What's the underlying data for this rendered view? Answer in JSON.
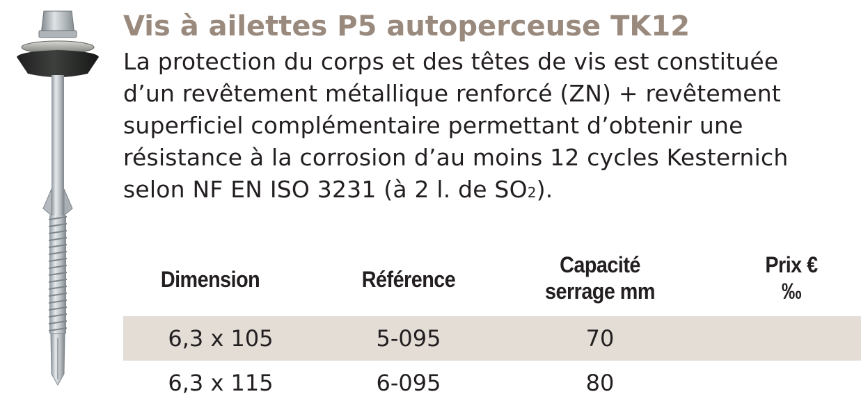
{
  "product": {
    "title": "Vis à ailettes P5 autoperceuse TK12",
    "description_lines": [
      "La protection du corps et des têtes de vis est constituée",
      "d’un revêtement métallique renforcé (ZN) + revêtement",
      "superficiel complémentaire permettant d’obtenir une",
      "résistance à la corrosion d’au moins 12 cycles Kesternich"
    ],
    "description_last_prefix": "selon NF EN ISO 3231 (à 2 l. de SO",
    "description_last_sub": "2",
    "description_last_suffix": ").",
    "image": "self-drilling-screw-with-washer-icon"
  },
  "table": {
    "headers": {
      "dimension": "Dimension",
      "reference": "Référence",
      "capacite_line1": "Capacité",
      "capacite_line2": "serrage mm",
      "prix_line1": "Prix €",
      "prix_line2": "‰"
    },
    "rows": [
      {
        "dimension": "6,3 x 105",
        "reference": "5-095",
        "capacite": "70",
        "prix": ""
      },
      {
        "dimension": "6,3 x 115",
        "reference": "6-095",
        "capacite": "80",
        "prix": ""
      }
    ]
  },
  "colors": {
    "title": "#9a8a7e",
    "text": "#231f20",
    "row_shade": "#e3ddd6"
  }
}
